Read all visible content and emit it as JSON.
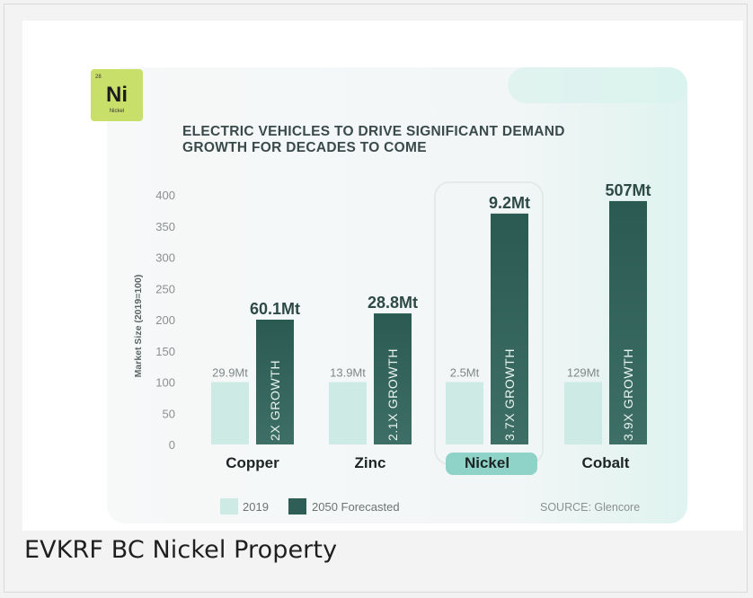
{
  "caption": "EVKRF BC Nickel Property",
  "badge": {
    "atomic_number": "28",
    "symbol": "Ni",
    "name": "Nickel"
  },
  "source": "SOURCE: Glencore",
  "colors": {
    "bar_2019": "#cdeae5",
    "bar_2050": "#2f5e56",
    "highlight": "#8fd3c8",
    "badge": "#c8e069"
  },
  "chart_data": {
    "type": "bar",
    "title": "ELECTRIC VEHICLES TO DRIVE SIGNIFICANT DEMAND GROWTH FOR DECADES TO COME",
    "title_lines": [
      "ELECTRIC VEHICLES TO DRIVE SIGNIFICANT DEMAND",
      "GROWTH FOR DECADES TO COME"
    ],
    "ylabel": "Market Size (2019=100)",
    "ylim": [
      0,
      400
    ],
    "yticks": [
      0,
      50,
      100,
      150,
      200,
      250,
      300,
      350,
      400
    ],
    "grid": false,
    "legend_position": "bottom-left",
    "highlighted_category": "Nickel",
    "categories": [
      "Copper",
      "Zinc",
      "Nickel",
      "Cobalt"
    ],
    "series": [
      {
        "name": "2019",
        "values": [
          100,
          100,
          100,
          100
        ],
        "labels": [
          "29.9Mt",
          "13.9Mt",
          "2.5Mt",
          "129Mt"
        ]
      },
      {
        "name": "2050 Forecasted",
        "values": [
          200,
          210,
          370,
          390
        ],
        "labels": [
          "60.1Mt",
          "28.8Mt",
          "9.2Mt",
          "507Mt"
        ],
        "annotations": [
          "2X GROWTH",
          "2.1X GROWTH",
          "3.7X GROWTH",
          "3.9X GROWTH"
        ]
      }
    ]
  }
}
